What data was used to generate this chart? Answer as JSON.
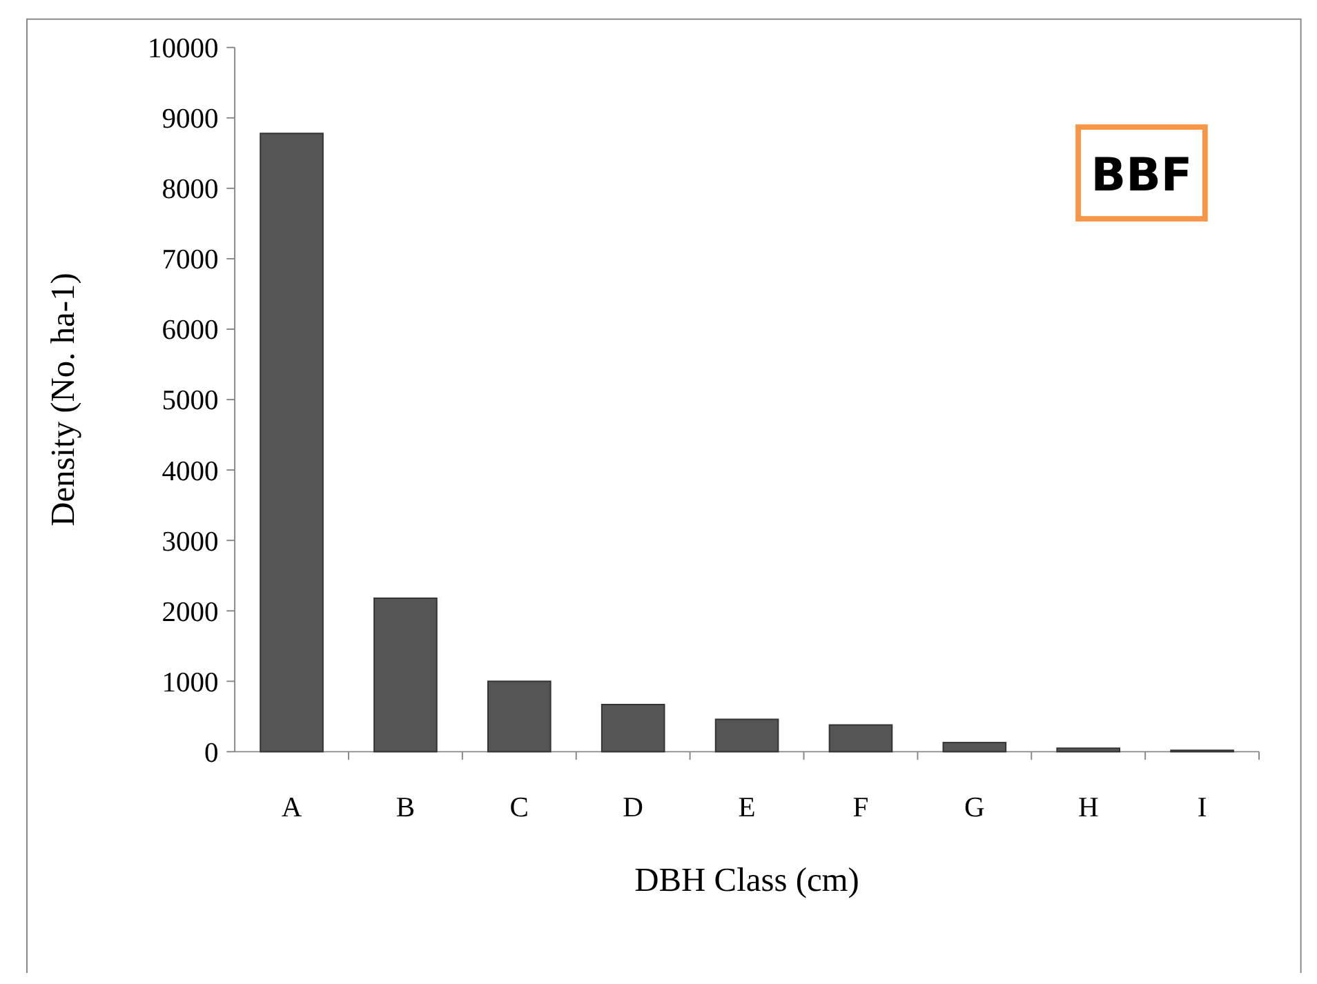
{
  "chart_data": {
    "type": "bar",
    "xlabel": "DBH Class (cm)",
    "ylabel": "Density (No. ha-1)",
    "categories": [
      "A",
      "B",
      "C",
      "D",
      "E",
      "F",
      "G",
      "H",
      "I"
    ],
    "values": [
      8780,
      2180,
      1000,
      670,
      460,
      380,
      130,
      50,
      20
    ],
    "color": "#555555",
    "ylim": [
      0,
      10000
    ],
    "yticks": [
      0,
      1000,
      2000,
      3000,
      4000,
      5000,
      6000,
      7000,
      8000,
      9000,
      10000
    ],
    "grid": false,
    "annotations": [
      "BBF"
    ]
  }
}
